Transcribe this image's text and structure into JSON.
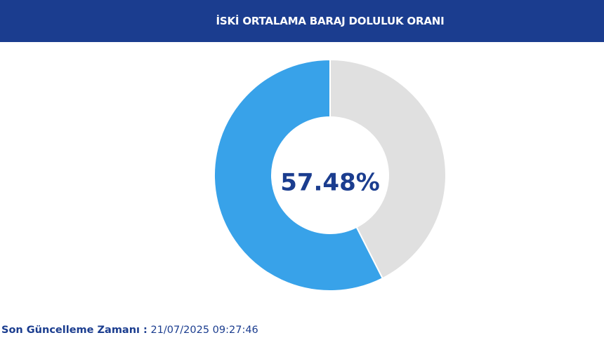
{
  "header": {
    "title": "İSKİ ORTALAMA BARAJ DOLULUK ORANI"
  },
  "colors": {
    "header_bg": "#1b3d8f",
    "filled": "#38a2e9",
    "empty": "#e0e0e0",
    "text_dark_blue": "#1b3d8f"
  },
  "chart_data": {
    "type": "pie",
    "donut": true,
    "slices": [
      {
        "value": 57.48,
        "color": "#38a2e9"
      },
      {
        "value": 42.52,
        "color": "#e0e0e0"
      }
    ],
    "center_label": "57.48%"
  },
  "footer": {
    "label": "Son Güncelleme Zamanı :",
    "value": "21/07/2025 09:27:46"
  }
}
